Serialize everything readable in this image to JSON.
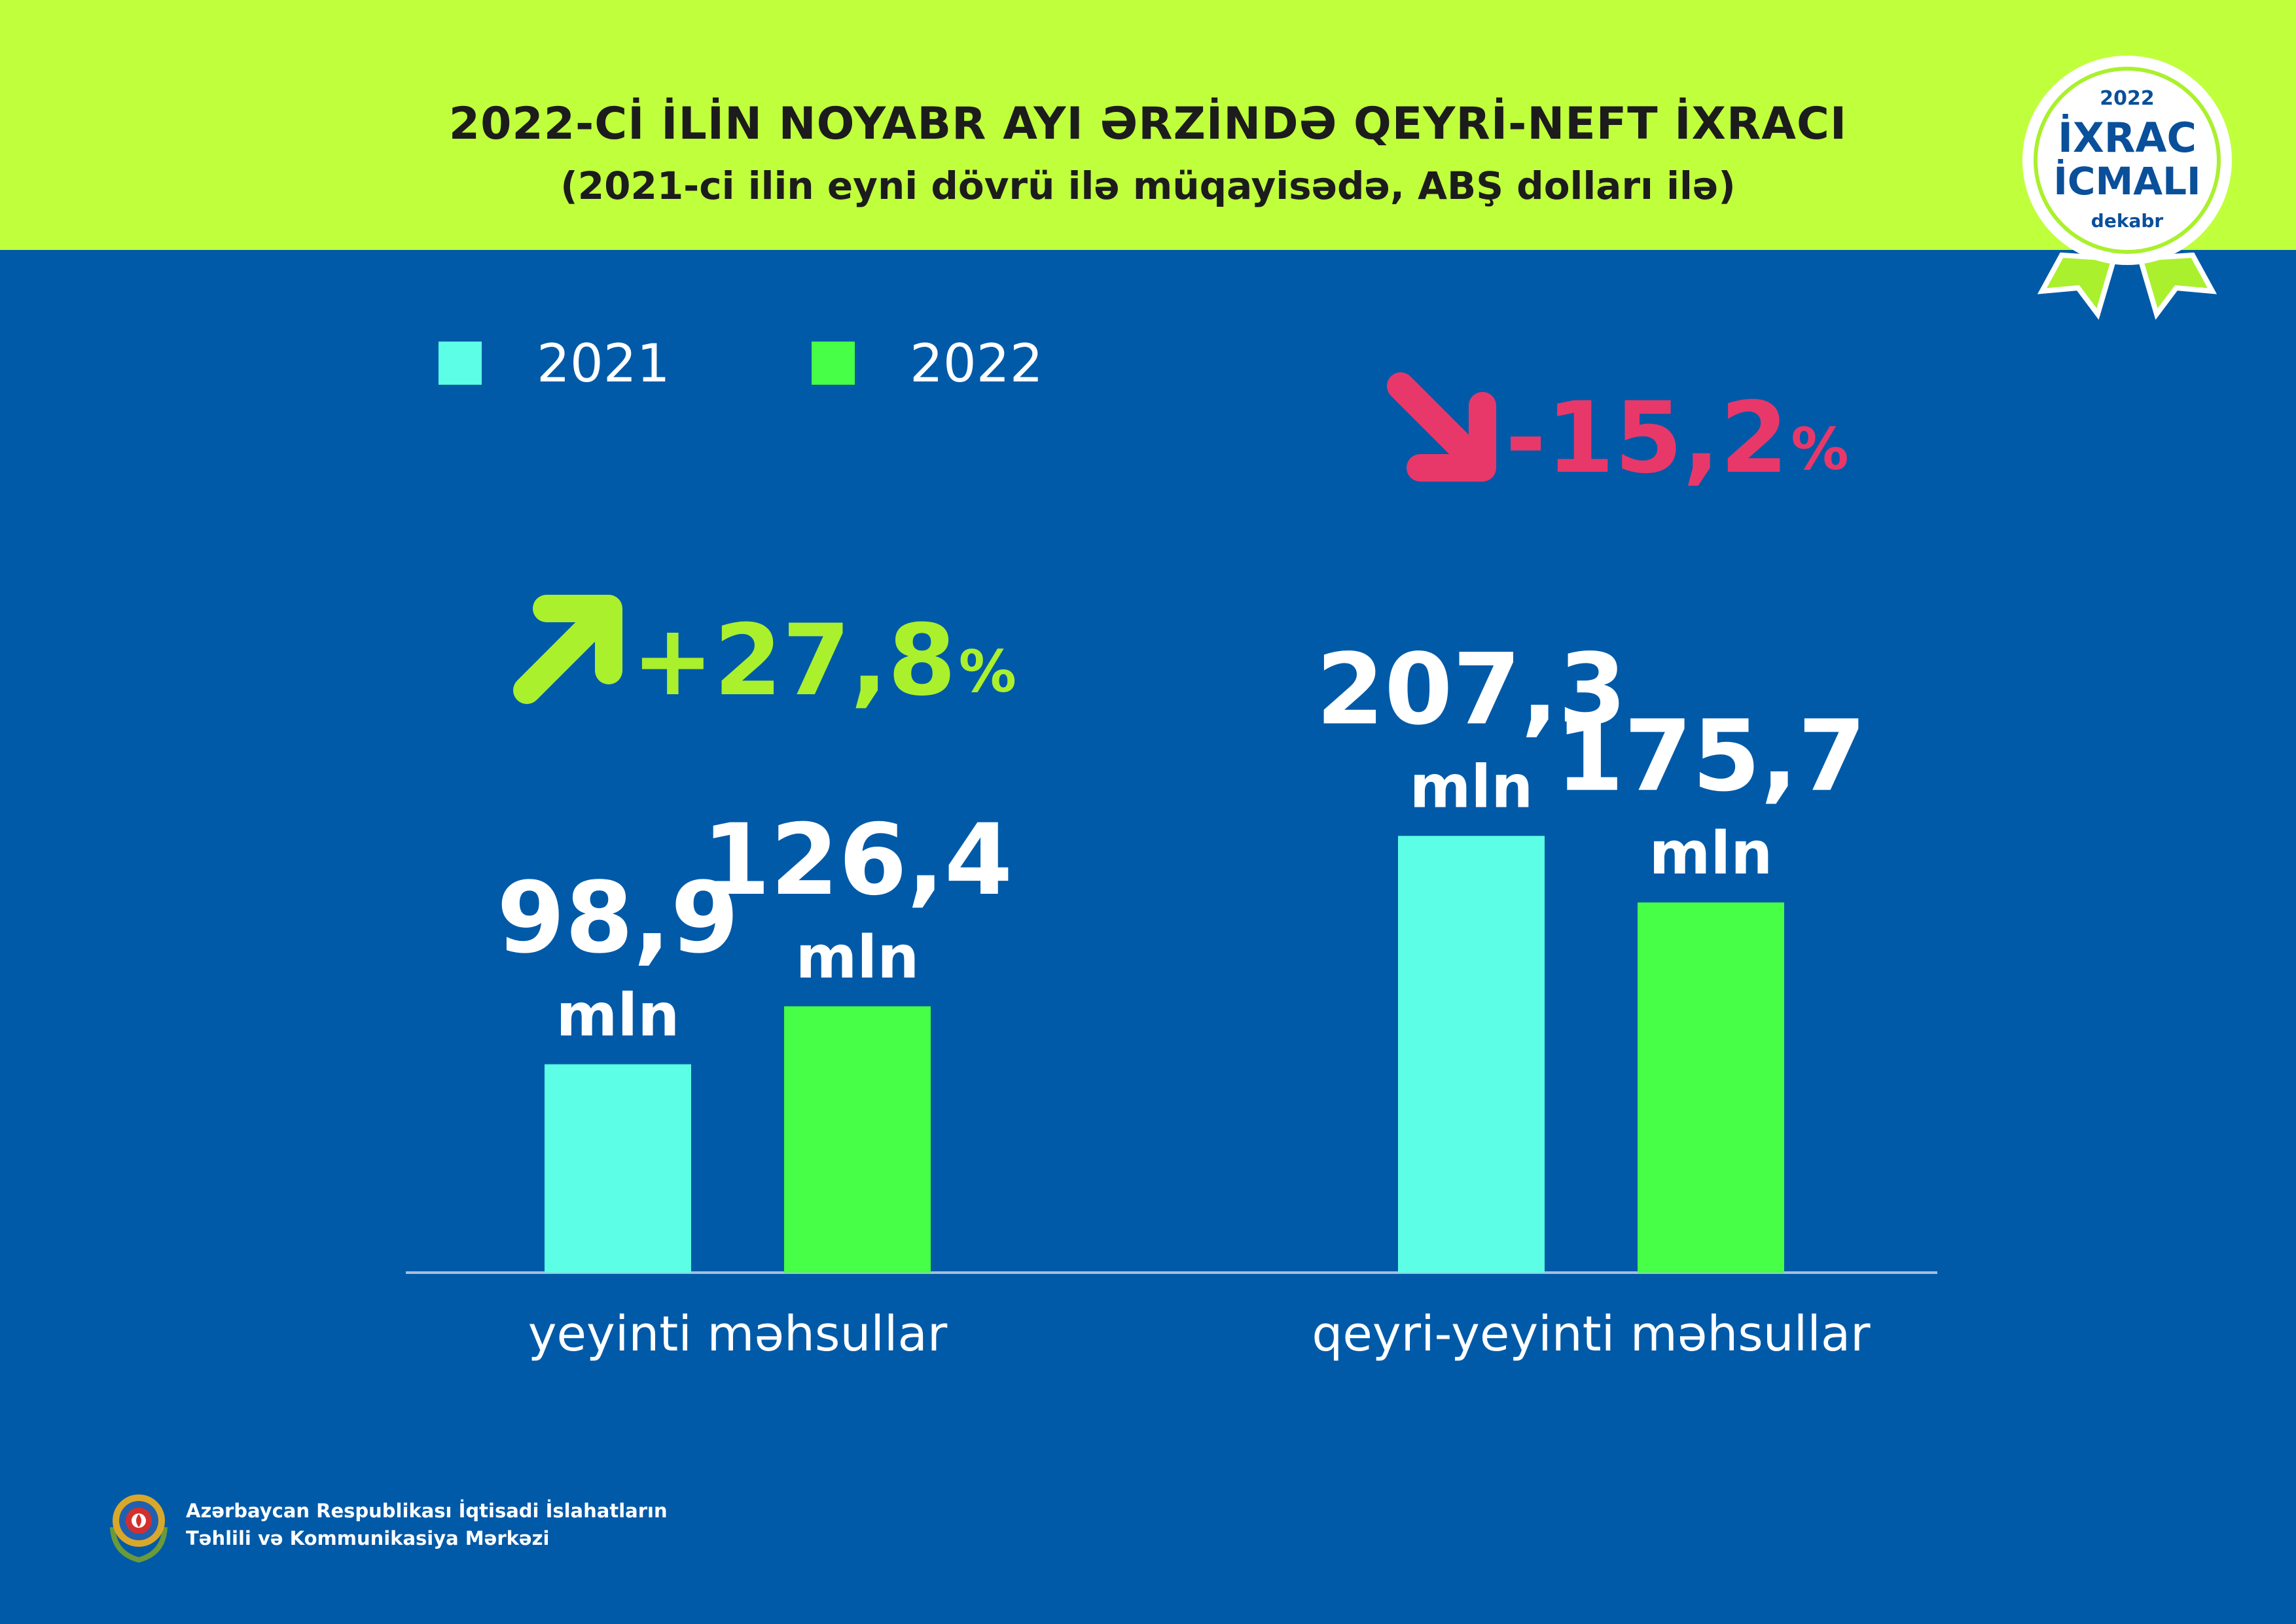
{
  "header": {
    "title": "2022-Cİ İLİN NOYABR AYI ƏRZİNDƏ QEYRİ-NEFT İXRACI",
    "subtitle": "(2021-ci ilin eyni dövrü ilə müqayisədə, ABŞ dolları ilə)"
  },
  "badge": {
    "year": "2022",
    "line1": "İXRAC",
    "line2": "İCMALI",
    "month": "dekabr"
  },
  "legend": [
    {
      "label": "2021",
      "color": "#5cffe6"
    },
    {
      "label": "2022",
      "color": "#46ff46"
    }
  ],
  "changes": [
    {
      "direction": "up",
      "value": "+27,8",
      "unit": "%",
      "color": "#aaf02d"
    },
    {
      "direction": "down",
      "value": "-15,2",
      "unit": "%",
      "color": "#e8386a"
    }
  ],
  "chart_data": {
    "type": "bar",
    "categories": [
      "yeyinti məhsullar",
      "qeyri-yeyinti məhsullar"
    ],
    "series": [
      {
        "name": "2021",
        "values": [
          98.9,
          207.3
        ],
        "labels": [
          "98,9",
          "207,3"
        ],
        "color": "#5cffe6"
      },
      {
        "name": "2022",
        "values": [
          126.4,
          175.7
        ],
        "labels": [
          "126,4",
          "175,7"
        ],
        "color": "#46ff46"
      }
    ],
    "unit_label": "mln",
    "ylim": [
      0,
      230
    ],
    "grid": false,
    "legend_position": "top-left"
  },
  "footer": {
    "org_line1": "Azərbaycan Respublikası İqtisadi İslahatların",
    "org_line2": "Təhlili və Kommunikasiya Mərkəzi"
  }
}
